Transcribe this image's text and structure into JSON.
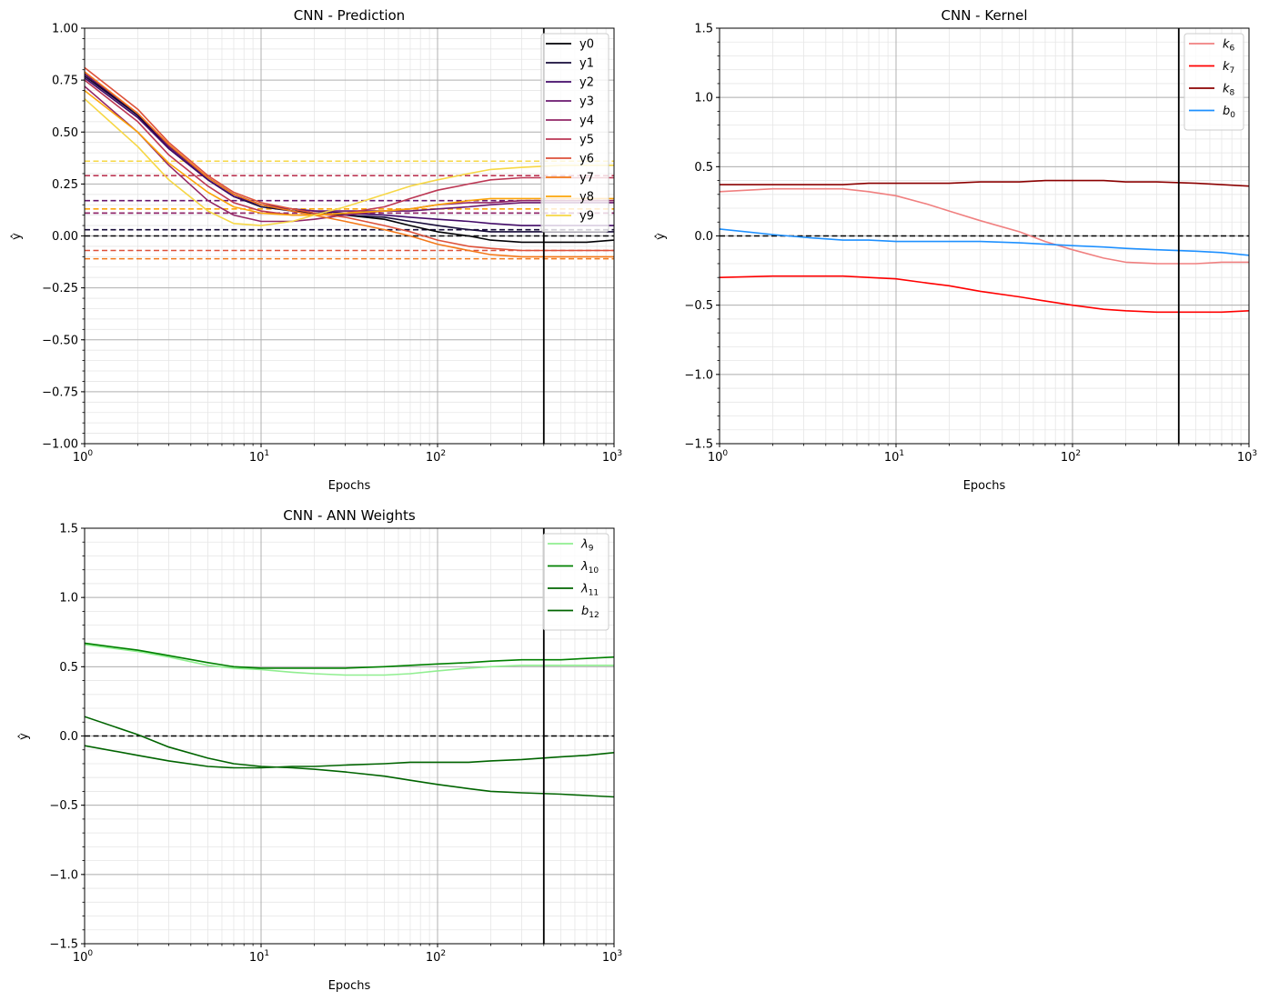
{
  "chart_data": [
    {
      "id": "prediction",
      "type": "line",
      "title": "CNN - Prediction",
      "xlabel": "Epochs",
      "ylabel": "ŷ",
      "xscale": "log",
      "xlim": [
        1,
        1000
      ],
      "ylim": [
        -1.0,
        1.0
      ],
      "yticks": [
        "−1.00",
        "−0.75",
        "−0.50",
        "−0.25",
        "0.00",
        "0.25",
        "0.50",
        "0.75",
        "1.00"
      ],
      "ytick_values": [
        -1.0,
        -0.75,
        -0.5,
        -0.25,
        0.0,
        0.25,
        0.5,
        0.75,
        1.0
      ],
      "yminor_step": 0.05,
      "xticks": [
        {
          "value": 1,
          "label": "10",
          "exp": "0"
        },
        {
          "value": 10,
          "label": "10",
          "exp": "1"
        },
        {
          "value": 100,
          "label": "10",
          "exp": "2"
        },
        {
          "value": 1000,
          "label": "10",
          "exp": "3"
        }
      ],
      "vline": 400,
      "legend": "top-right",
      "series": [
        {
          "name": "y0",
          "color": "#000004",
          "x": [
            1,
            2,
            3,
            5,
            7,
            10,
            15,
            20,
            30,
            50,
            70,
            100,
            150,
            200,
            300,
            500,
            700,
            1000
          ],
          "y": [
            0.78,
            0.58,
            0.43,
            0.28,
            0.2,
            0.15,
            0.12,
            0.11,
            0.1,
            0.08,
            0.05,
            0.02,
            0.0,
            -0.02,
            -0.03,
            -0.03,
            -0.03,
            -0.02
          ],
          "target": 0.0
        },
        {
          "name": "y1",
          "color": "#160b39",
          "x": [
            1,
            2,
            3,
            5,
            7,
            10,
            15,
            20,
            30,
            50,
            70,
            100,
            150,
            200,
            300,
            500,
            700,
            1000
          ],
          "y": [
            0.77,
            0.58,
            0.42,
            0.27,
            0.19,
            0.14,
            0.12,
            0.11,
            0.1,
            0.09,
            0.07,
            0.05,
            0.03,
            0.02,
            0.02,
            0.02,
            0.02,
            0.02
          ],
          "target": 0.03
        },
        {
          "name": "y2",
          "color": "#420a68",
          "x": [
            1,
            2,
            3,
            5,
            7,
            10,
            15,
            20,
            30,
            50,
            70,
            100,
            150,
            200,
            300,
            500,
            700,
            1000
          ],
          "y": [
            0.76,
            0.57,
            0.42,
            0.27,
            0.19,
            0.15,
            0.13,
            0.12,
            0.11,
            0.1,
            0.09,
            0.08,
            0.07,
            0.06,
            0.05,
            0.05,
            0.05,
            0.05
          ],
          "target": 0.11
        },
        {
          "name": "y3",
          "color": "#6a176e",
          "x": [
            1,
            2,
            3,
            5,
            7,
            10,
            15,
            20,
            30,
            50,
            70,
            100,
            150,
            200,
            300,
            500,
            700,
            1000
          ],
          "y": [
            0.78,
            0.59,
            0.43,
            0.28,
            0.2,
            0.15,
            0.13,
            0.12,
            0.12,
            0.12,
            0.12,
            0.13,
            0.14,
            0.15,
            0.16,
            0.16,
            0.16,
            0.16
          ],
          "target": 0.17
        },
        {
          "name": "y4",
          "color": "#932667",
          "x": [
            1,
            2,
            3,
            5,
            7,
            10,
            15,
            20,
            30,
            50,
            70,
            100,
            150,
            200,
            300,
            500,
            700,
            1000
          ],
          "y": [
            0.72,
            0.5,
            0.34,
            0.17,
            0.1,
            0.07,
            0.07,
            0.08,
            0.1,
            0.12,
            0.13,
            0.15,
            0.16,
            0.16,
            0.17,
            0.17,
            0.17,
            0.17
          ],
          "target": 0.11
        },
        {
          "name": "y5",
          "color": "#bc3754",
          "x": [
            1,
            2,
            3,
            5,
            7,
            10,
            15,
            20,
            30,
            50,
            70,
            100,
            150,
            200,
            300,
            500,
            700,
            1000
          ],
          "y": [
            0.75,
            0.55,
            0.39,
            0.24,
            0.16,
            0.12,
            0.1,
            0.1,
            0.11,
            0.14,
            0.18,
            0.22,
            0.25,
            0.27,
            0.28,
            0.28,
            0.28,
            0.28
          ],
          "target": 0.29
        },
        {
          "name": "y6",
          "color": "#dd513a",
          "x": [
            1,
            2,
            3,
            5,
            7,
            10,
            15,
            20,
            30,
            50,
            70,
            100,
            150,
            200,
            300,
            500,
            700,
            1000
          ],
          "y": [
            0.81,
            0.61,
            0.45,
            0.29,
            0.21,
            0.16,
            0.13,
            0.11,
            0.09,
            0.05,
            0.02,
            -0.02,
            -0.05,
            -0.06,
            -0.07,
            -0.07,
            -0.07,
            -0.07
          ],
          "target": -0.07
        },
        {
          "name": "y7",
          "color": "#f37819",
          "x": [
            1,
            2,
            3,
            5,
            7,
            10,
            15,
            20,
            30,
            50,
            70,
            100,
            150,
            200,
            300,
            500,
            700,
            1000
          ],
          "y": [
            0.79,
            0.59,
            0.44,
            0.28,
            0.2,
            0.15,
            0.12,
            0.1,
            0.07,
            0.03,
            0.0,
            -0.04,
            -0.07,
            -0.09,
            -0.1,
            -0.1,
            -0.1,
            -0.1
          ],
          "target": -0.11
        },
        {
          "name": "y8",
          "color": "#fca50a",
          "x": [
            1,
            2,
            3,
            5,
            7,
            10,
            15,
            20,
            30,
            50,
            70,
            100,
            150,
            200,
            300,
            500,
            700,
            1000
          ],
          "y": [
            0.7,
            0.5,
            0.35,
            0.21,
            0.14,
            0.11,
            0.1,
            0.1,
            0.11,
            0.12,
            0.13,
            0.15,
            0.17,
            0.18,
            0.18,
            0.18,
            0.18,
            0.18
          ],
          "target": 0.13
        },
        {
          "name": "y9",
          "color": "#f6d746",
          "x": [
            1,
            2,
            3,
            5,
            7,
            10,
            15,
            20,
            30,
            50,
            70,
            100,
            150,
            200,
            300,
            500,
            700,
            1000
          ],
          "y": [
            0.66,
            0.43,
            0.27,
            0.12,
            0.06,
            0.05,
            0.07,
            0.1,
            0.14,
            0.2,
            0.24,
            0.27,
            0.3,
            0.32,
            0.33,
            0.34,
            0.34,
            0.34
          ],
          "target": 0.36
        }
      ]
    },
    {
      "id": "kernel",
      "type": "line",
      "title": "CNN - Kernel",
      "xlabel": "Epochs",
      "ylabel": "ŷ",
      "xscale": "log",
      "xlim": [
        1,
        1000
      ],
      "ylim": [
        -1.5,
        1.5
      ],
      "yticks": [
        "−1.5",
        "−1.0",
        "−0.5",
        "0.0",
        "0.5",
        "1.0",
        "1.5"
      ],
      "ytick_values": [
        -1.5,
        -1.0,
        -0.5,
        0.0,
        0.5,
        1.0,
        1.5
      ],
      "yminor_step": 0.1,
      "xticks": [
        {
          "value": 1,
          "label": "10",
          "exp": "0"
        },
        {
          "value": 10,
          "label": "10",
          "exp": "1"
        },
        {
          "value": 100,
          "label": "10",
          "exp": "2"
        },
        {
          "value": 1000,
          "label": "10",
          "exp": "3"
        }
      ],
      "vline": 400,
      "hline": 0.0,
      "legend": "top-right",
      "series": [
        {
          "name": "k",
          "sub": "6",
          "color": "#f08080",
          "x": [
            1,
            2,
            3,
            5,
            7,
            10,
            15,
            20,
            30,
            50,
            70,
            100,
            150,
            200,
            300,
            500,
            700,
            1000
          ],
          "y": [
            0.32,
            0.34,
            0.34,
            0.34,
            0.32,
            0.29,
            0.23,
            0.18,
            0.11,
            0.03,
            -0.04,
            -0.1,
            -0.16,
            -0.19,
            -0.2,
            -0.2,
            -0.19,
            -0.19
          ]
        },
        {
          "name": "k",
          "sub": "7",
          "color": "#ff0000",
          "x": [
            1,
            2,
            3,
            5,
            7,
            10,
            15,
            20,
            30,
            50,
            70,
            100,
            150,
            200,
            300,
            500,
            700,
            1000
          ],
          "y": [
            -0.3,
            -0.29,
            -0.29,
            -0.29,
            -0.3,
            -0.31,
            -0.34,
            -0.36,
            -0.4,
            -0.44,
            -0.47,
            -0.5,
            -0.53,
            -0.54,
            -0.55,
            -0.55,
            -0.55,
            -0.54
          ]
        },
        {
          "name": "k",
          "sub": "8",
          "color": "#8b0000",
          "x": [
            1,
            2,
            3,
            5,
            7,
            10,
            15,
            20,
            30,
            50,
            70,
            100,
            150,
            200,
            300,
            500,
            700,
            1000
          ],
          "y": [
            0.37,
            0.37,
            0.37,
            0.37,
            0.38,
            0.38,
            0.38,
            0.38,
            0.39,
            0.39,
            0.4,
            0.4,
            0.4,
            0.39,
            0.39,
            0.38,
            0.37,
            0.36
          ]
        },
        {
          "name": "b",
          "sub": "0",
          "color": "#1e90ff",
          "x": [
            1,
            2,
            3,
            5,
            7,
            10,
            15,
            20,
            30,
            50,
            70,
            100,
            150,
            200,
            300,
            500,
            700,
            1000
          ],
          "y": [
            0.05,
            0.01,
            -0.01,
            -0.03,
            -0.03,
            -0.04,
            -0.04,
            -0.04,
            -0.04,
            -0.05,
            -0.06,
            -0.07,
            -0.08,
            -0.09,
            -0.1,
            -0.11,
            -0.12,
            -0.14
          ]
        }
      ]
    },
    {
      "id": "ann",
      "type": "line",
      "title": "CNN - ANN Weights",
      "xlabel": "Epochs",
      "ylabel": "ŷ",
      "xscale": "log",
      "xlim": [
        1,
        1000
      ],
      "ylim": [
        -1.5,
        1.5
      ],
      "yticks": [
        "−1.5",
        "−1.0",
        "−0.5",
        "0.0",
        "0.5",
        "1.0",
        "1.5"
      ],
      "ytick_values": [
        -1.5,
        -1.0,
        -0.5,
        0.0,
        0.5,
        1.0,
        1.5
      ],
      "yminor_step": 0.1,
      "xticks": [
        {
          "value": 1,
          "label": "10",
          "exp": "0"
        },
        {
          "value": 10,
          "label": "10",
          "exp": "1"
        },
        {
          "value": 100,
          "label": "10",
          "exp": "2"
        },
        {
          "value": 1000,
          "label": "10",
          "exp": "3"
        }
      ],
      "vline": 400,
      "hline": 0.0,
      "legend": "top-right",
      "series": [
        {
          "name": "λ",
          "sub": "9",
          "color": "#90ee90",
          "x": [
            1,
            2,
            3,
            5,
            7,
            10,
            15,
            20,
            30,
            50,
            70,
            100,
            150,
            200,
            300,
            500,
            700,
            1000
          ],
          "y": [
            0.66,
            0.61,
            0.57,
            0.51,
            0.49,
            0.48,
            0.46,
            0.45,
            0.44,
            0.44,
            0.45,
            0.47,
            0.49,
            0.5,
            0.51,
            0.51,
            0.51,
            0.51
          ]
        },
        {
          "name": "λ",
          "sub": "10",
          "color": "#008000",
          "x": [
            1,
            2,
            3,
            5,
            7,
            10,
            15,
            20,
            30,
            50,
            70,
            100,
            150,
            200,
            300,
            500,
            700,
            1000
          ],
          "y": [
            0.67,
            0.62,
            0.58,
            0.53,
            0.5,
            0.49,
            0.49,
            0.49,
            0.49,
            0.5,
            0.51,
            0.52,
            0.53,
            0.54,
            0.55,
            0.55,
            0.56,
            0.57
          ]
        },
        {
          "name": "λ",
          "sub": "11",
          "color": "#006400",
          "x": [
            1,
            2,
            3,
            5,
            7,
            10,
            15,
            20,
            30,
            50,
            70,
            100,
            150,
            200,
            300,
            500,
            700,
            1000
          ],
          "y": [
            -0.07,
            -0.14,
            -0.18,
            -0.22,
            -0.23,
            -0.23,
            -0.22,
            -0.22,
            -0.21,
            -0.2,
            -0.19,
            -0.19,
            -0.19,
            -0.18,
            -0.17,
            -0.15,
            -0.14,
            -0.12
          ]
        },
        {
          "name": "b",
          "sub": "12",
          "color": "#006400",
          "x": [
            1,
            2,
            3,
            5,
            7,
            10,
            15,
            20,
            30,
            50,
            70,
            100,
            150,
            200,
            300,
            500,
            700,
            1000
          ],
          "y": [
            0.14,
            0.01,
            -0.08,
            -0.16,
            -0.2,
            -0.22,
            -0.23,
            -0.24,
            -0.26,
            -0.29,
            -0.32,
            -0.35,
            -0.38,
            -0.4,
            -0.41,
            -0.42,
            -0.43,
            -0.44
          ]
        }
      ]
    }
  ]
}
